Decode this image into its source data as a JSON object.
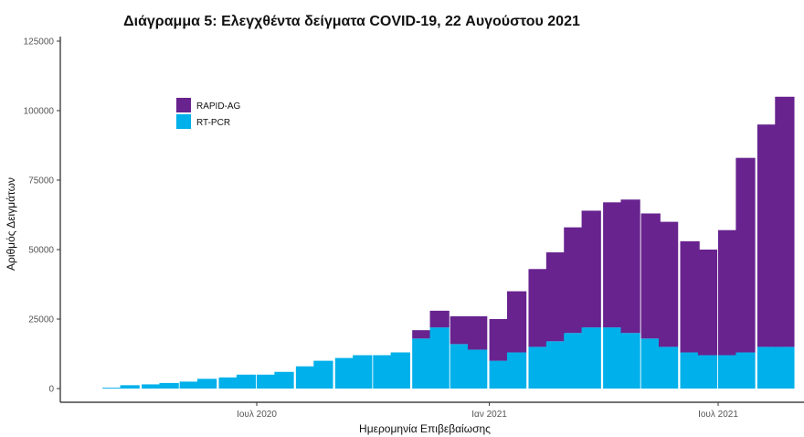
{
  "chart_data": {
    "type": "bar",
    "stacked": true,
    "title": "Διάγραμμα 5: Ελεγχθέντα δείγματα COVID-19, 22 Αυγούστου 2021",
    "xlabel": "Ημερομηνία Επιβεβαίωσης",
    "ylabel": "Αριθμός Δειγμάτων",
    "ylim": [
      0,
      125000
    ],
    "yticks": [
      0,
      25000,
      50000,
      75000,
      100000,
      125000
    ],
    "xticks": [
      {
        "date": "2020-07-01",
        "label": "Ιουλ 2020"
      },
      {
        "date": "2021-01-01",
        "label": "Ιαν 2021"
      },
      {
        "date": "2021-07-01",
        "label": "Ιουλ 2021"
      }
    ],
    "grid": false,
    "legend_position": "top-left",
    "x": [
      "2020-03-01",
      "2020-03-15",
      "2020-04-01",
      "2020-04-15",
      "2020-05-01",
      "2020-05-15",
      "2020-06-01",
      "2020-06-15",
      "2020-07-01",
      "2020-07-15",
      "2020-08-01",
      "2020-08-15",
      "2020-09-01",
      "2020-09-15",
      "2020-10-01",
      "2020-10-15",
      "2020-11-01",
      "2020-11-15",
      "2020-12-01",
      "2020-12-15",
      "2021-01-01",
      "2021-01-15",
      "2021-02-01",
      "2021-02-15",
      "2021-03-01",
      "2021-03-15",
      "2021-04-01",
      "2021-04-15",
      "2021-05-01",
      "2021-05-15",
      "2021-06-01",
      "2021-06-15",
      "2021-07-01",
      "2021-07-15",
      "2021-08-01",
      "2021-08-15"
    ],
    "series": [
      {
        "name": "RT-PCR",
        "color": "#00b0ea",
        "values": [
          300,
          1200,
          1500,
          2000,
          2500,
          3500,
          4000,
          5000,
          5000,
          6000,
          8000,
          10000,
          11000,
          12000,
          12000,
          13000,
          18000,
          22000,
          16000,
          14000,
          10000,
          13000,
          15000,
          17000,
          20000,
          22000,
          22000,
          20000,
          18000,
          15000,
          13000,
          12000,
          12000,
          13000,
          15000,
          15000
        ]
      },
      {
        "name": "RAPID-AG",
        "color": "#68238f",
        "values": [
          0,
          0,
          0,
          0,
          0,
          0,
          0,
          0,
          0,
          0,
          0,
          0,
          0,
          0,
          0,
          0,
          3000,
          6000,
          10000,
          12000,
          15000,
          22000,
          28000,
          32000,
          38000,
          42000,
          45000,
          48000,
          45000,
          45000,
          40000,
          38000,
          45000,
          70000,
          80000,
          90000
        ]
      }
    ]
  }
}
